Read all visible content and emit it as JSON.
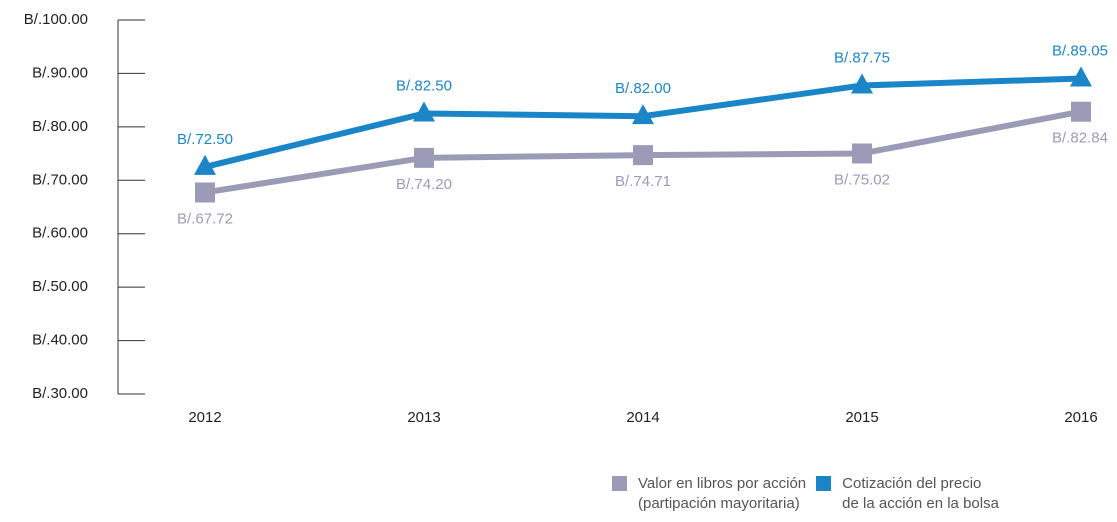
{
  "chart_data": {
    "type": "line",
    "categories": [
      "2012",
      "2013",
      "2014",
      "2015",
      "2016"
    ],
    "series": [
      {
        "name": "Valor en libros por acción\n(partipación mayoritaria)",
        "color": "#9b9bb8",
        "marker": "square",
        "values": [
          67.72,
          74.2,
          74.71,
          75.02,
          82.84
        ],
        "value_labels": [
          "B/.67.72",
          "B/.74.20",
          "B/.74.71",
          "B/.75.02",
          "B/.82.84"
        ]
      },
      {
        "name": "Cotización del precio\nde la acción en la bolsa",
        "color": "#1a86c8",
        "marker": "triangle",
        "values": [
          72.5,
          82.5,
          82.0,
          87.75,
          89.05
        ],
        "value_labels": [
          "B/.72.50",
          "B/.82.50",
          "B/.82.00",
          "B/.87.75",
          "B/.89.05"
        ]
      }
    ],
    "ylim": [
      30,
      100
    ],
    "yticks": [
      {
        "value": 30,
        "label": "B/.30.00"
      },
      {
        "value": 40,
        "label": "B/.40.00"
      },
      {
        "value": 50,
        "label": "B/.50.00"
      },
      {
        "value": 60,
        "label": "B/.60.00"
      },
      {
        "value": 70,
        "label": "B/.70.00"
      },
      {
        "value": 80,
        "label": "B/.80.00"
      },
      {
        "value": 90,
        "label": "B/.90.00"
      },
      {
        "value": 100,
        "label": "B/.100.00"
      }
    ]
  }
}
